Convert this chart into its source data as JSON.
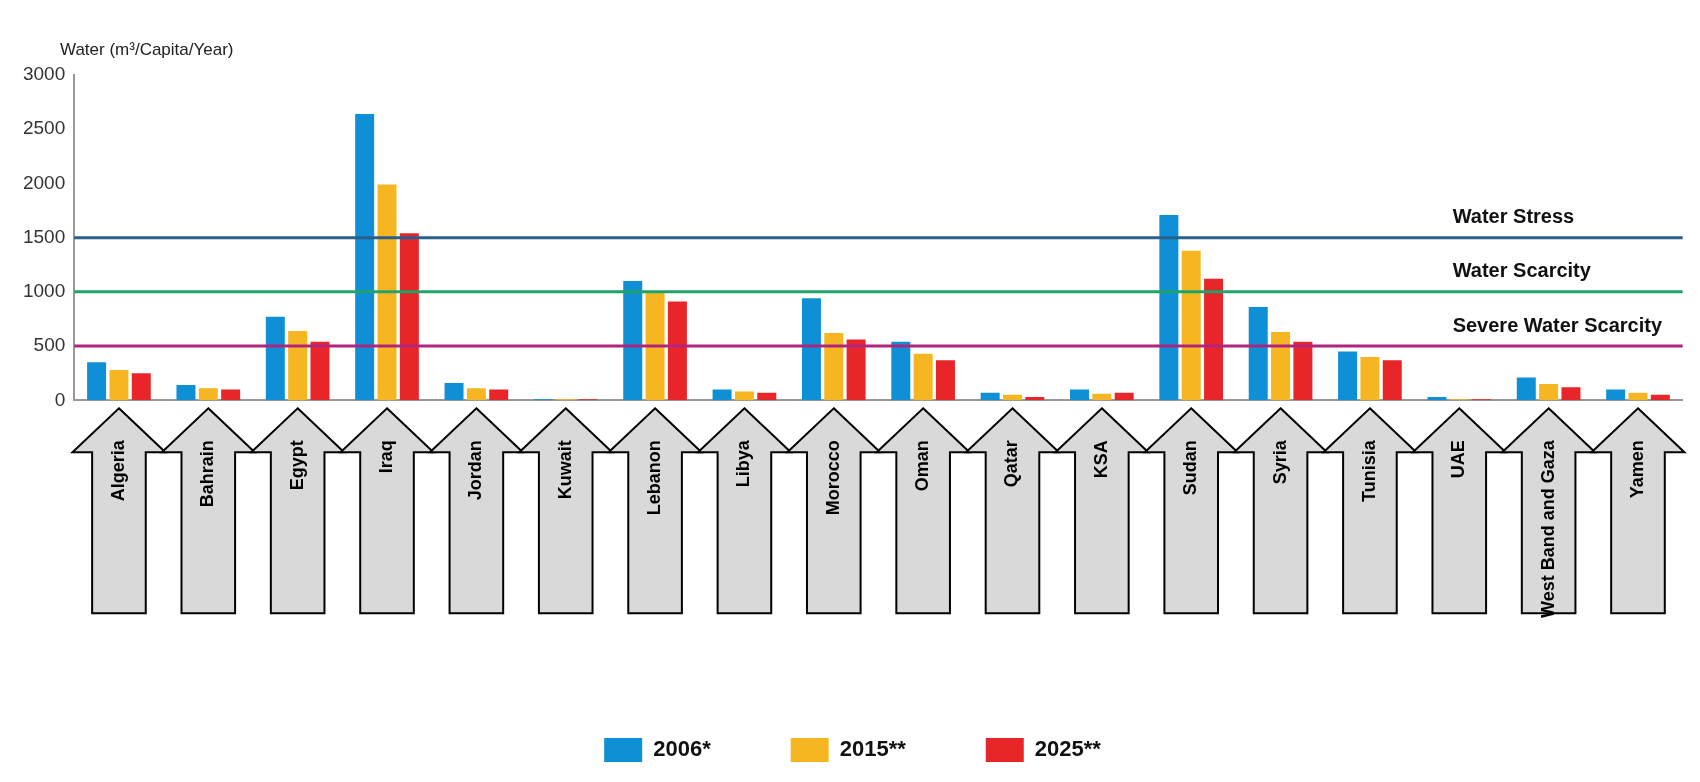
{
  "chart_data": {
    "type": "bar",
    "ylabel": "Water (m³/Capita/Year)",
    "categories": [
      "Algeria",
      "Bahrain",
      "Egypt",
      "Iraq",
      "Jordan",
      "Kuwait",
      "Lebanon",
      "Libya",
      "Morocco",
      "Oman",
      "Qatar",
      "KSA",
      "Sudan",
      "Syria",
      "Tunisia",
      "UAE",
      "West Band and Gaza",
      "Yamen"
    ],
    "series": [
      {
        "name": "2006*",
        "color": "#0e8fd6",
        "values": [
          350,
          140,
          770,
          2640,
          160,
          10,
          1100,
          100,
          940,
          540,
          70,
          100,
          1710,
          860,
          450,
          30,
          210,
          100
        ]
      },
      {
        "name": "2015**",
        "color": "#f5b622",
        "values": [
          280,
          110,
          640,
          1990,
          110,
          10,
          1000,
          80,
          620,
          430,
          50,
          60,
          1380,
          630,
          400,
          10,
          150,
          70
        ]
      },
      {
        "name": "2025**",
        "color": "#e8262a",
        "values": [
          250,
          100,
          540,
          1540,
          100,
          10,
          910,
          70,
          560,
          370,
          30,
          70,
          1120,
          540,
          370,
          10,
          120,
          50
        ]
      }
    ],
    "ylim": [
      0,
      3000
    ],
    "yticks": [
      0,
      500,
      1000,
      1500,
      2000,
      2500,
      3000
    ],
    "grid": false,
    "legend": "bottom",
    "ref_lines": [
      {
        "axis": "y",
        "value": 1500,
        "label": "Water Stress",
        "color": "#2a5f8a"
      },
      {
        "axis": "y",
        "value": 1000,
        "label": "Water Scarcity",
        "color": "#1fa36a"
      },
      {
        "axis": "y",
        "value": 500,
        "label": "Severe Water Scarcity",
        "color": "#b0247e"
      }
    ]
  }
}
